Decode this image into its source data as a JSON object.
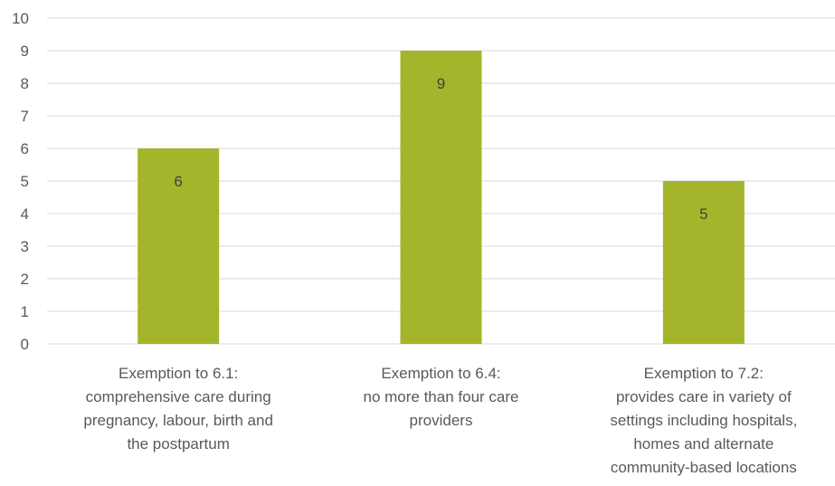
{
  "chart_data": {
    "type": "bar",
    "categories": [
      [
        "Exemption to 6.1:",
        "comprehensive care during",
        "pregnancy, labour, birth and",
        "the postpartum"
      ],
      [
        "Exemption to 6.4:",
        "no more than four care",
        "providers"
      ],
      [
        "Exemption to 7.2:",
        "provides care in variety of",
        "settings including hospitals,",
        "homes and alternate",
        "community-based locations"
      ]
    ],
    "values": [
      6,
      9,
      5
    ],
    "data_labels": [
      "6",
      "9",
      "5"
    ],
    "ylim": [
      0,
      10
    ],
    "yticks": [
      0,
      1,
      2,
      3,
      4,
      5,
      6,
      7,
      8,
      9,
      10
    ],
    "title": "",
    "xlabel": "",
    "ylabel": "",
    "grid": true,
    "legend": "none",
    "bar_color": "#a5b52b"
  }
}
